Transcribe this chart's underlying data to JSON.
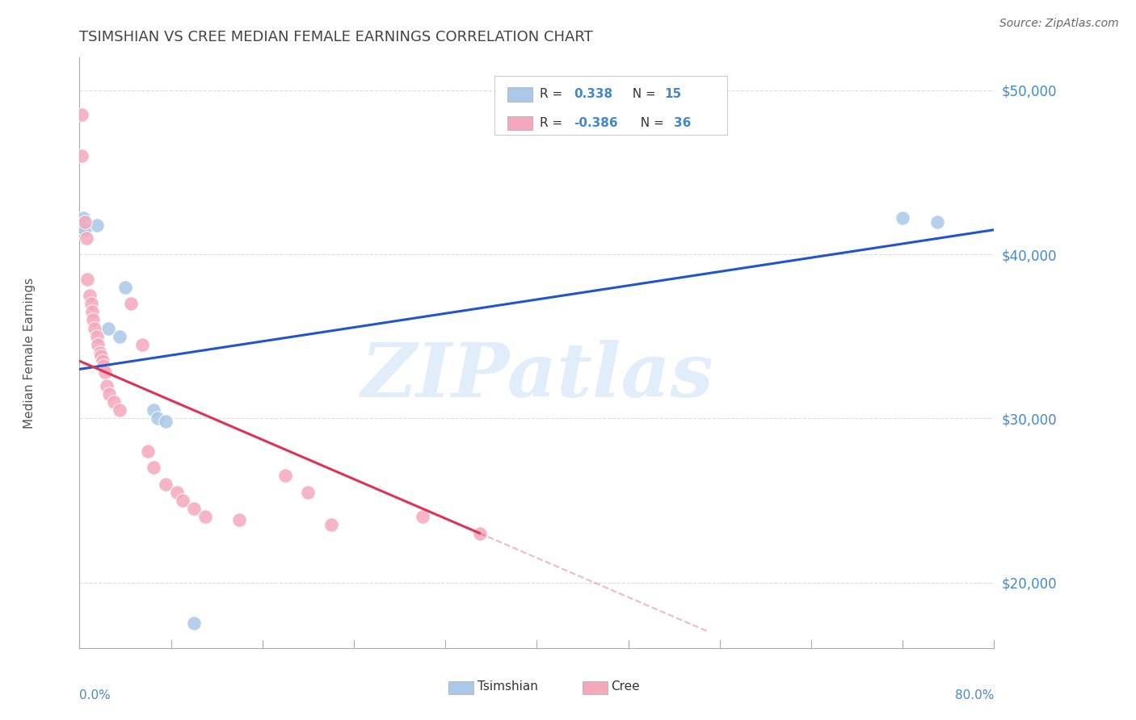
{
  "title": "TSIMSHIAN VS CREE MEDIAN FEMALE EARNINGS CORRELATION CHART",
  "source": "Source: ZipAtlas.com",
  "ylabel": "Median Female Earnings",
  "x_min": 0.0,
  "x_max": 80.0,
  "y_min": 16000,
  "y_max": 52000,
  "y_ticks": [
    20000,
    30000,
    40000,
    50000
  ],
  "y_labels": [
    "$20,000",
    "$30,000",
    "$40,000",
    "$50,000"
  ],
  "tsimshian_color": "#aac8e8",
  "cree_color": "#f5a8bc",
  "tsimshian_line_color": "#2255cc",
  "cree_line_color": "#dd3355",
  "tsimshian_R": "0.338",
  "tsimshian_N": "15",
  "cree_R": "-0.386",
  "cree_N": "36",
  "tsimshian_points_x": [
    0.2,
    0.3,
    0.35,
    0.4,
    0.5,
    1.5,
    2.5,
    3.5,
    4.0,
    6.5,
    6.8,
    7.5,
    10.0,
    72.0,
    75.0
  ],
  "tsimshian_points_y": [
    42000,
    42200,
    41800,
    41600,
    41500,
    41800,
    35500,
    35000,
    38000,
    30500,
    30000,
    29800,
    17500,
    42200,
    42000
  ],
  "cree_points_x": [
    0.15,
    0.2,
    0.5,
    0.6,
    0.7,
    0.9,
    1.0,
    1.1,
    1.2,
    1.3,
    1.5,
    1.6,
    1.8,
    1.9,
    2.0,
    2.1,
    2.2,
    2.4,
    2.6,
    3.0,
    3.5,
    4.5,
    5.5,
    6.0,
    6.5,
    7.5,
    8.5,
    9.0,
    10.0,
    11.0,
    14.0,
    18.0,
    20.0,
    22.0,
    30.0,
    35.0
  ],
  "cree_points_y": [
    48500,
    46000,
    42000,
    41000,
    38500,
    37500,
    37000,
    36500,
    36000,
    35500,
    35000,
    34500,
    34000,
    33800,
    33500,
    33200,
    32800,
    32000,
    31500,
    31000,
    30500,
    37000,
    34500,
    28000,
    27000,
    26000,
    25500,
    25000,
    24500,
    24000,
    23800,
    26500,
    25500,
    23500,
    24000,
    23000
  ],
  "tsimshian_trend_x0": 0.0,
  "tsimshian_trend_y0": 33000,
  "tsimshian_trend_x1": 80.0,
  "tsimshian_trend_y1": 41500,
  "cree_solid_x0": 0.0,
  "cree_solid_y0": 33500,
  "cree_solid_x1": 35.0,
  "cree_solid_y1": 23000,
  "cree_dash_x0": 35.0,
  "cree_dash_y0": 23000,
  "cree_dash_x1": 55.0,
  "cree_dash_y1": 17000,
  "watermark_text": "ZIPatlas",
  "background_color": "#ffffff",
  "grid_color": "#dddddd",
  "label_color": "#4488cc",
  "title_color": "#444444"
}
